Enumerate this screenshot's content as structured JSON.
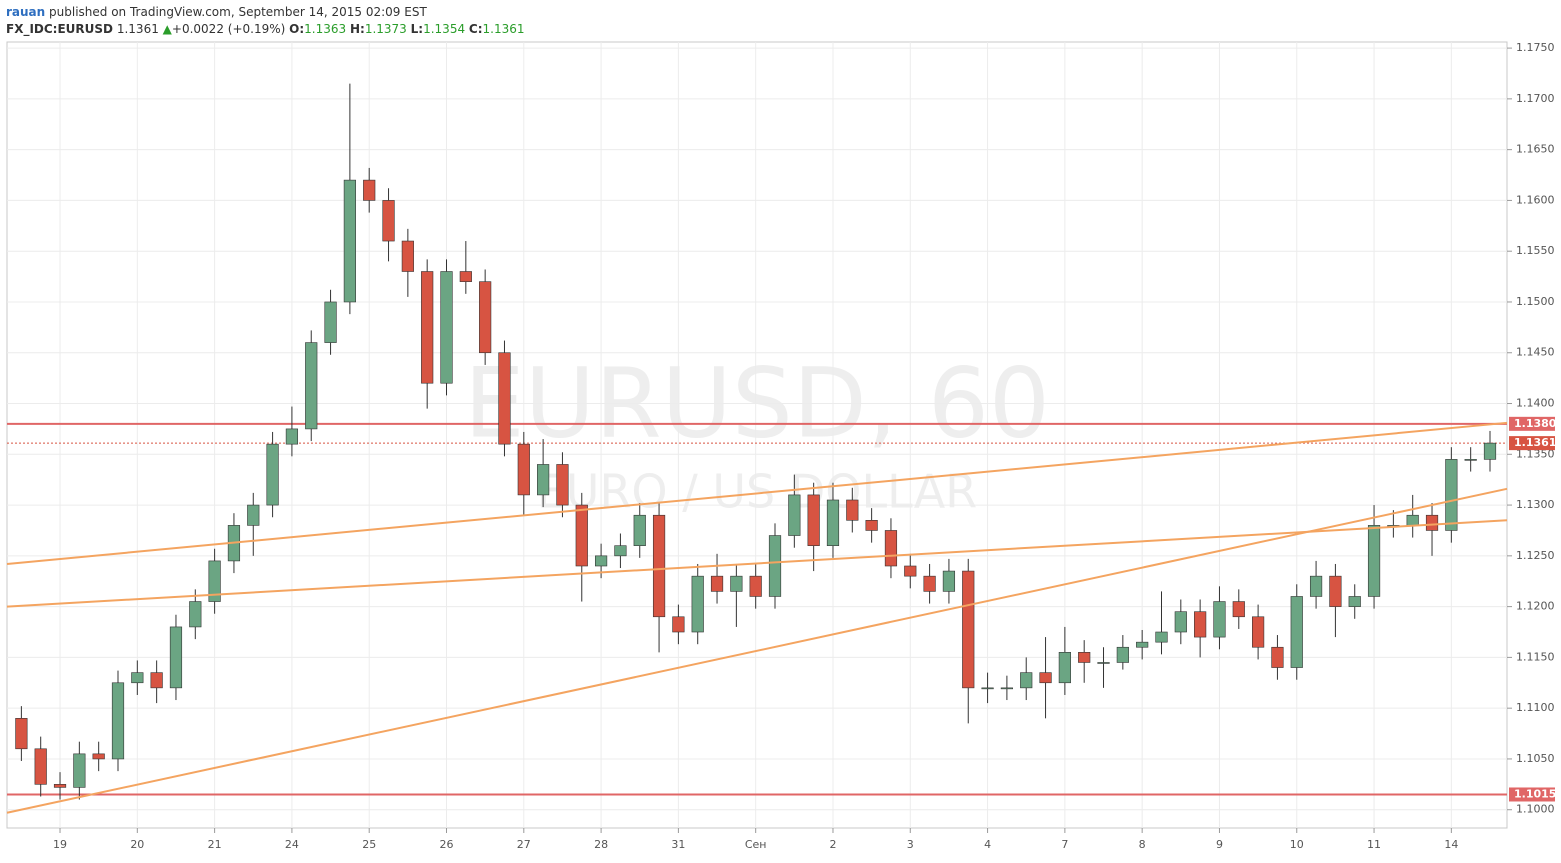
{
  "chart_data": {
    "type": "candlestick",
    "header": {
      "author": "rauan",
      "published": "published on TradingView.com, September 14, 2015 02:09 EST",
      "symbol": "FX_IDC:EURUSD",
      "last": "1.1361",
      "arrow": "▲",
      "change": "+0.0022 (+0.19%)",
      "o_label": "O:",
      "o": "1.1363",
      "h_label": "H:",
      "h": "1.1373",
      "l_label": "L:",
      "l": "1.1354",
      "c_label": "C:",
      "c": "1.1361"
    },
    "watermark": "EURUSD, 60",
    "watermark_sub": "EURO / US DOLLAR",
    "up_color": "#6ba583",
    "down_color": "#d75442",
    "grid": true,
    "xlim": [
      -0.686,
      18.72
    ],
    "ylim": [
      1.0982,
      1.1756
    ],
    "xticks": [
      {
        "value": 0,
        "label": "19"
      },
      {
        "value": 1,
        "label": "20"
      },
      {
        "value": 2,
        "label": "21"
      },
      {
        "value": 3,
        "label": "24"
      },
      {
        "value": 4,
        "label": "25"
      },
      {
        "value": 5,
        "label": "26"
      },
      {
        "value": 6,
        "label": "27"
      },
      {
        "value": 7,
        "label": "28"
      },
      {
        "value": 8,
        "label": "31"
      },
      {
        "value": 9,
        "label": "Сен"
      },
      {
        "value": 10,
        "label": "2"
      },
      {
        "value": 11,
        "label": "3"
      },
      {
        "value": 12,
        "label": "4"
      },
      {
        "value": 13,
        "label": "7"
      },
      {
        "value": 14,
        "label": "8"
      },
      {
        "value": 15,
        "label": "9"
      },
      {
        "value": 16,
        "label": "10"
      },
      {
        "value": 17,
        "label": "11"
      },
      {
        "value": 18,
        "label": "14"
      }
    ],
    "yticks": [
      {
        "value": 1.1,
        "label": "1.1000"
      },
      {
        "value": 1.105,
        "label": "1.1050"
      },
      {
        "value": 1.11,
        "label": "1.1100"
      },
      {
        "value": 1.115,
        "label": "1.1150"
      },
      {
        "value": 1.12,
        "label": "1.1200"
      },
      {
        "value": 1.125,
        "label": "1.1250"
      },
      {
        "value": 1.13,
        "label": "1.1300"
      },
      {
        "value": 1.135,
        "label": "1.1350"
      },
      {
        "value": 1.14,
        "label": "1.1400"
      },
      {
        "value": 1.145,
        "label": "1.1450"
      },
      {
        "value": 1.15,
        "label": "1.1500"
      },
      {
        "value": 1.155,
        "label": "1.1550"
      },
      {
        "value": 1.16,
        "label": "1.1600"
      },
      {
        "value": 1.165,
        "label": "1.1650"
      },
      {
        "value": 1.17,
        "label": "1.1700"
      },
      {
        "value": 1.175,
        "label": "1.1750"
      }
    ],
    "x": [
      -0.5,
      -0.25,
      0,
      0.25,
      0.5,
      0.75,
      1,
      1.25,
      1.5,
      1.75,
      2,
      2.25,
      2.5,
      2.75,
      3,
      3.25,
      3.5,
      3.75,
      4,
      4.25,
      4.5,
      4.75,
      5,
      5.25,
      5.5,
      5.75,
      6,
      6.25,
      6.5,
      6.75,
      7,
      7.25,
      7.5,
      7.75,
      8,
      8.25,
      8.5,
      8.75,
      9,
      9.25,
      9.5,
      9.75,
      10,
      10.25,
      10.5,
      10.75,
      11,
      11.25,
      11.5,
      11.75,
      12,
      12.25,
      12.5,
      12.75,
      13,
      13.25,
      13.5,
      13.75,
      14,
      14.25,
      14.5,
      14.75,
      15,
      15.25,
      15.5,
      15.75,
      16,
      16.25,
      16.5,
      16.75,
      17,
      17.25,
      17.5,
      17.75,
      18,
      18.25,
      18.5
    ],
    "open": [
      1.109,
      1.106,
      1.1025,
      1.1022,
      1.1055,
      1.105,
      1.1125,
      1.1135,
      1.112,
      1.118,
      1.1205,
      1.1245,
      1.128,
      1.13,
      1.136,
      1.1375,
      1.146,
      1.15,
      1.162,
      1.16,
      1.156,
      1.153,
      1.142,
      1.153,
      1.152,
      1.145,
      1.136,
      1.131,
      1.134,
      1.13,
      1.124,
      1.125,
      1.126,
      1.129,
      1.119,
      1.1175,
      1.123,
      1.1215,
      1.123,
      1.121,
      1.127,
      1.131,
      1.126,
      1.1305,
      1.1285,
      1.1275,
      1.124,
      1.123,
      1.1215,
      1.1235,
      1.112,
      1.112,
      1.112,
      1.1135,
      1.1125,
      1.1155,
      1.1145,
      1.1145,
      1.116,
      1.1165,
      1.1175,
      1.1195,
      1.117,
      1.1205,
      1.119,
      1.116,
      1.114,
      1.121,
      1.123,
      1.12,
      1.121,
      1.128,
      1.128,
      1.129,
      1.1275,
      1.1345,
      1.1345
    ],
    "high": [
      1.1102,
      1.1072,
      1.1037,
      1.1067,
      1.1067,
      1.1137,
      1.1147,
      1.1147,
      1.1192,
      1.1217,
      1.1257,
      1.1292,
      1.1312,
      1.1372,
      1.1397,
      1.1472,
      1.1512,
      1.1715,
      1.1632,
      1.1612,
      1.1572,
      1.1542,
      1.1542,
      1.156,
      1.1532,
      1.1462,
      1.1372,
      1.1365,
      1.1352,
      1.1312,
      1.1262,
      1.1272,
      1.1302,
      1.1302,
      1.1202,
      1.1242,
      1.1252,
      1.1242,
      1.1242,
      1.1282,
      1.133,
      1.1322,
      1.1322,
      1.1317,
      1.1297,
      1.1287,
      1.1252,
      1.1242,
      1.1247,
      1.1247,
      1.1135,
      1.1132,
      1.115,
      1.117,
      1.118,
      1.1167,
      1.116,
      1.1172,
      1.1177,
      1.1215,
      1.1207,
      1.1207,
      1.122,
      1.1217,
      1.1202,
      1.1172,
      1.1222,
      1.1245,
      1.1242,
      1.1222,
      1.13,
      1.1295,
      1.131,
      1.1302,
      1.1357,
      1.1357,
      1.1373
    ],
    "low": [
      1.1048,
      1.1013,
      1.101,
      1.101,
      1.1038,
      1.1038,
      1.1113,
      1.1105,
      1.1108,
      1.1168,
      1.1193,
      1.1233,
      1.125,
      1.1288,
      1.1348,
      1.1363,
      1.1448,
      1.1488,
      1.1588,
      1.154,
      1.1505,
      1.1395,
      1.1408,
      1.1508,
      1.1438,
      1.1348,
      1.129,
      1.1298,
      1.1288,
      1.1205,
      1.1228,
      1.1238,
      1.1248,
      1.1155,
      1.1163,
      1.1163,
      1.1203,
      1.118,
      1.1198,
      1.1198,
      1.1258,
      1.1235,
      1.1248,
      1.1273,
      1.1263,
      1.1228,
      1.1218,
      1.1203,
      1.1203,
      1.1085,
      1.1105,
      1.1108,
      1.1108,
      1.109,
      1.1113,
      1.1125,
      1.112,
      1.1138,
      1.1148,
      1.1153,
      1.1163,
      1.115,
      1.1158,
      1.1178,
      1.1148,
      1.1128,
      1.1128,
      1.1198,
      1.117,
      1.1188,
      1.1198,
      1.1268,
      1.1268,
      1.125,
      1.1263,
      1.1333,
      1.1333
    ],
    "close": [
      1.106,
      1.1025,
      1.1022,
      1.1055,
      1.105,
      1.1125,
      1.1135,
      1.112,
      1.118,
      1.1205,
      1.1245,
      1.128,
      1.13,
      1.136,
      1.1375,
      1.146,
      1.15,
      1.162,
      1.16,
      1.156,
      1.153,
      1.142,
      1.153,
      1.152,
      1.145,
      1.136,
      1.131,
      1.134,
      1.13,
      1.124,
      1.125,
      1.126,
      1.129,
      1.119,
      1.1175,
      1.123,
      1.1215,
      1.123,
      1.121,
      1.127,
      1.131,
      1.126,
      1.1305,
      1.1285,
      1.1275,
      1.124,
      1.123,
      1.1215,
      1.1235,
      1.112,
      1.112,
      1.112,
      1.1135,
      1.1125,
      1.1155,
      1.1145,
      1.1145,
      1.116,
      1.1165,
      1.1175,
      1.1195,
      1.117,
      1.1205,
      1.119,
      1.116,
      1.114,
      1.121,
      1.123,
      1.12,
      1.121,
      1.128,
      1.128,
      1.129,
      1.1275,
      1.1345,
      1.1345,
      1.1361
    ],
    "levels": [
      {
        "value": 1.138,
        "label": "1.1380",
        "color": "#e06666",
        "style": "solid"
      },
      {
        "value": 1.1015,
        "label": "1.1015",
        "color": "#e06666",
        "style": "solid"
      },
      {
        "value": 1.1361,
        "label": "1.1361",
        "color": "#d75442",
        "style": "dotted"
      }
    ],
    "trendlines": [
      {
        "x": [
          -0.686,
          18.72
        ],
        "y": [
          1.1242,
          1.1381
        ],
        "color": "#f4a460"
      },
      {
        "x": [
          -0.686,
          18.72
        ],
        "y": [
          1.12,
          1.1285
        ],
        "color": "#f4a460"
      },
      {
        "x": [
          -0.686,
          18.72
        ],
        "y": [
          1.0997,
          1.1316
        ],
        "color": "#f4a460"
      }
    ]
  }
}
